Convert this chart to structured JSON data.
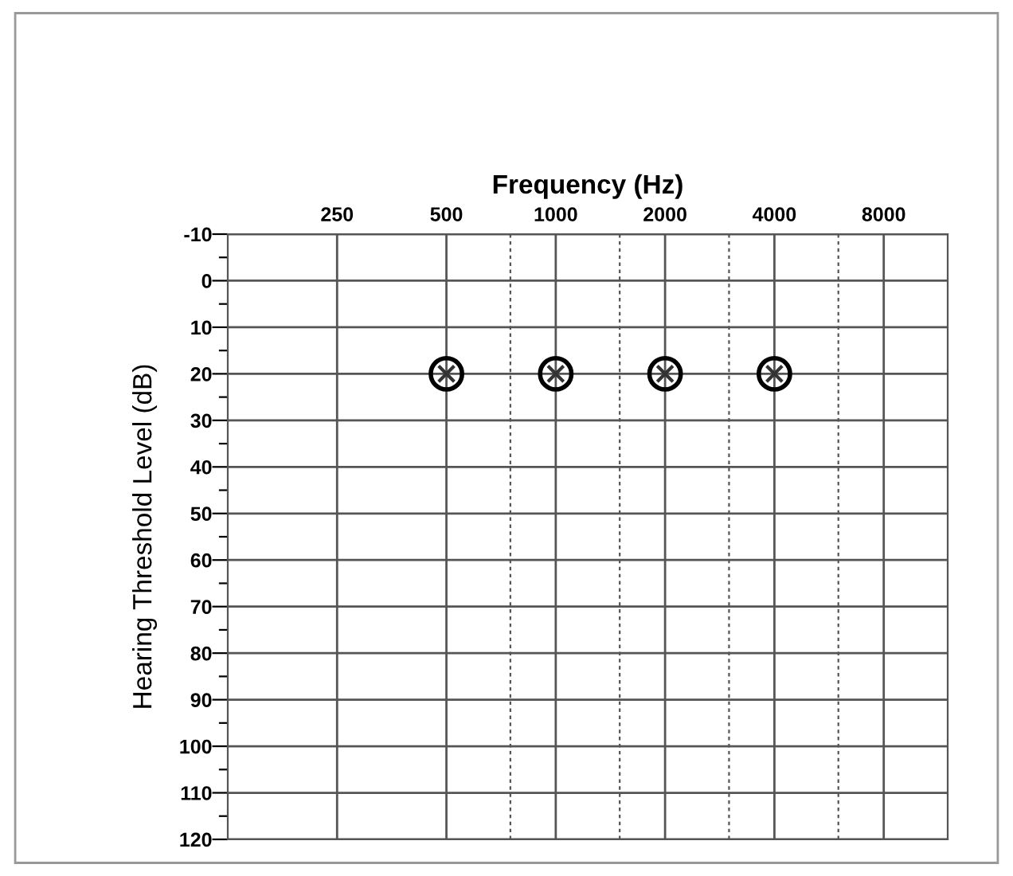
{
  "chart_data": {
    "type": "scatter",
    "xlabel": "Frequency (Hz)",
    "ylabel": "Hearing Threshold Level (dB)",
    "x": [
      500,
      1000,
      2000,
      4000
    ],
    "series": [
      {
        "color": "#000000",
        "marker": "circle",
        "values": [
          20,
          20,
          20,
          20
        ]
      },
      {
        "color": "#333333",
        "marker": "cross",
        "values": [
          20,
          20,
          20,
          20
        ]
      }
    ],
    "log": "x",
    "xlim": [
      125,
      12000
    ],
    "xticks": [
      250,
      500,
      1000,
      2000,
      4000,
      8000
    ],
    "ylim": [
      120,
      -10
    ],
    "yticks": [
      -10,
      {
        "value": -5,
        "label": null
      },
      0,
      {
        "value": 5,
        "label": null
      },
      10,
      {
        "value": 15,
        "label": null
      },
      20,
      {
        "value": 25,
        "label": null
      },
      30,
      {
        "value": 35,
        "label": null
      },
      40,
      {
        "value": 45,
        "label": null
      },
      50,
      {
        "value": 55,
        "label": null
      },
      60,
      {
        "value": 65,
        "label": null
      },
      70,
      {
        "value": 75,
        "label": null
      },
      80,
      {
        "value": 85,
        "label": null
      },
      90,
      {
        "value": 95,
        "label": null
      },
      100,
      {
        "value": 105,
        "label": null
      },
      110,
      {
        "value": 115,
        "label": null
      },
      120
    ],
    "grid": true,
    "legend": false,
    "ref_lines": [
      {
        "axis": "x",
        "value": 750,
        "line_style": "dashed"
      },
      {
        "axis": "x",
        "value": 1500,
        "line_style": "dashed"
      },
      {
        "axis": "x",
        "value": 3000,
        "line_style": "dashed"
      },
      {
        "axis": "x",
        "value": 6000,
        "line_style": "dashed"
      }
    ]
  }
}
